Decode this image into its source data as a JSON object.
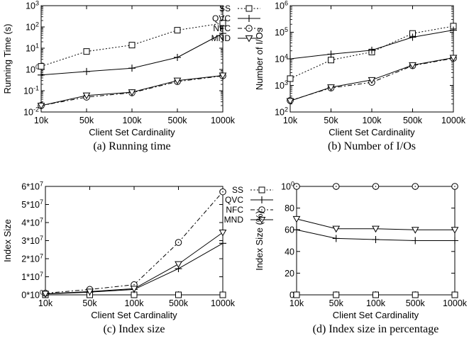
{
  "chart_data": [
    {
      "id": "a",
      "type": "line",
      "caption": "(a) Running time",
      "xlabel": "Client Set Cardinality",
      "ylabel": "Running Time (s)",
      "yscale": "log",
      "ylim": [
        0.01,
        1000
      ],
      "yticks": [
        "10-2",
        "10-1",
        "100",
        "101",
        "102",
        "103"
      ],
      "categories": [
        "10k",
        "50k",
        "100k",
        "500k",
        "1000k"
      ],
      "legend_position": "top-right",
      "series": [
        {
          "name": "SS",
          "style": "dotted",
          "marker": "square",
          "values": [
            1.4,
            7,
            14,
            70,
            150
          ]
        },
        {
          "name": "QVC",
          "style": "solid",
          "marker": "plus",
          "values": [
            0.55,
            0.8,
            1.15,
            3.7,
            50
          ]
        },
        {
          "name": "NFC",
          "style": "dashdot",
          "marker": "circle",
          "values": [
            0.02,
            0.05,
            0.08,
            0.27,
            0.5
          ]
        },
        {
          "name": "MND",
          "style": "solid",
          "marker": "triangle-down",
          "values": [
            0.02,
            0.06,
            0.085,
            0.3,
            0.52
          ]
        }
      ]
    },
    {
      "id": "b",
      "type": "line",
      "caption": "(b) Number of I/Os",
      "xlabel": "Client Set Cardinality",
      "ylabel": "Number of I/Os",
      "yscale": "log",
      "ylim": [
        100,
        1000000
      ],
      "yticks": [
        "102",
        "103",
        "104",
        "105",
        "106"
      ],
      "categories": [
        "10k",
        "50k",
        "100k",
        "500k",
        "1000k"
      ],
      "series": [
        {
          "name": "SS",
          "style": "dotted",
          "marker": "square",
          "values": [
            1800,
            9000,
            18000,
            90000,
            170000
          ]
        },
        {
          "name": "QVC",
          "style": "solid",
          "marker": "plus",
          "values": [
            10000,
            15000,
            21000,
            65000,
            120000
          ]
        },
        {
          "name": "NFC",
          "style": "dashdot",
          "marker": "circle",
          "values": [
            270,
            800,
            1300,
            5500,
            10500
          ]
        },
        {
          "name": "MND",
          "style": "solid",
          "marker": "triangle-down",
          "values": [
            260,
            850,
            1600,
            5800,
            11000
          ]
        }
      ]
    },
    {
      "id": "c",
      "type": "line",
      "caption": "(c) Index size",
      "xlabel": "Client Set Cardinality",
      "ylabel": "Index Size",
      "yscale": "linear",
      "ylim": [
        0,
        60000000
      ],
      "yticks": [
        "0*100",
        "1*107",
        "2*107",
        "3*107",
        "4*107",
        "5*107",
        "6*107"
      ],
      "categories": [
        "10k",
        "50k",
        "100k",
        "500k",
        "1000k"
      ],
      "legend_position": "top-left",
      "series": [
        {
          "name": "SS",
          "style": "dotted",
          "marker": "square",
          "values": [
            0,
            0,
            0,
            0,
            0
          ]
        },
        {
          "name": "QVC",
          "style": "solid",
          "marker": "plus",
          "values": [
            500000,
            1500000,
            3000000,
            14500000,
            28500000
          ]
        },
        {
          "name": "NFC",
          "style": "dashdot",
          "marker": "circle",
          "values": [
            900000,
            3000000,
            5600000,
            29000000,
            57000000
          ]
        },
        {
          "name": "MND",
          "style": "solid",
          "marker": "triangle-down",
          "values": [
            600000,
            1800000,
            3400000,
            17000000,
            34500000
          ]
        }
      ]
    },
    {
      "id": "d",
      "type": "line",
      "caption": "(d) Index size in percentage",
      "xlabel": "Client Set Cardinality",
      "ylabel": "Index Size (%)",
      "yscale": "linear",
      "ylim": [
        0,
        100
      ],
      "yticks": [
        "0",
        "20",
        "40",
        "60",
        "80",
        "100"
      ],
      "categories": [
        "10k",
        "50k",
        "100k",
        "500k",
        "1000k"
      ],
      "series": [
        {
          "name": "SS",
          "style": "dotted",
          "marker": "square",
          "values": [
            0,
            0,
            0,
            0,
            0
          ]
        },
        {
          "name": "QVC",
          "style": "solid",
          "marker": "plus",
          "values": [
            60,
            52,
            51,
            50,
            50
          ]
        },
        {
          "name": "NFC",
          "style": "dashdot",
          "marker": "circle",
          "values": [
            100,
            100,
            100,
            100,
            100
          ]
        },
        {
          "name": "MND",
          "style": "solid",
          "marker": "triangle-down",
          "values": [
            70,
            61,
            61,
            60,
            60
          ]
        }
      ]
    }
  ]
}
